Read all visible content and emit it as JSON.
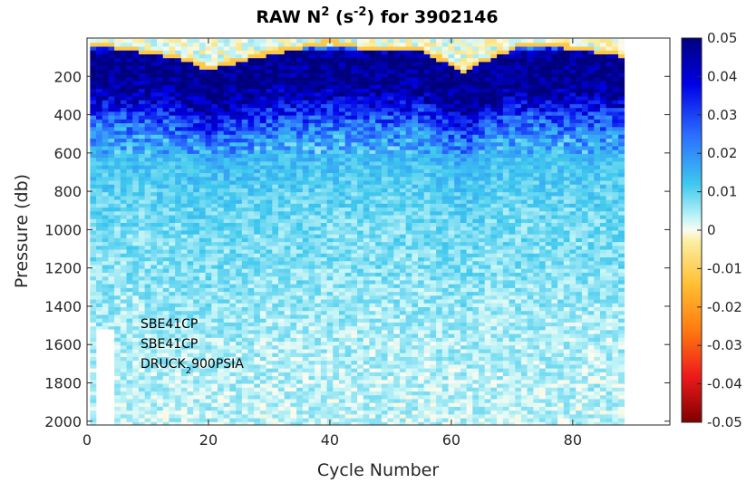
{
  "title": {
    "prefix": "RAW N",
    "sup1": "2",
    "mid": " (s",
    "sup2": "-2",
    "suffix": ") for 3902146"
  },
  "colors": {
    "background": "#ffffff",
    "axis": "#262626",
    "gap": "#ffffff"
  },
  "chart_data": {
    "type": "heatmap",
    "xlabel": "Cycle Number",
    "ylabel": "Pressure (db)",
    "xlim": [
      0,
      96
    ],
    "ylim": [
      2020,
      0
    ],
    "xticks": [
      0,
      20,
      40,
      60,
      80
    ],
    "yticks": [
      200,
      400,
      600,
      800,
      1000,
      1200,
      1400,
      1600,
      1800,
      2000
    ],
    "colorbar": {
      "label": "",
      "clim": [
        -0.05,
        0.05
      ],
      "ticks": [
        "0.05",
        "0.04",
        "0.03",
        "0.02",
        "0.01",
        "0",
        "-0.01",
        "-0.02",
        "-0.03",
        "-0.04",
        "-0.05"
      ],
      "colormap": "jet-like diverging (dark red → red → orange → yellow → white at 0 → cyan → blue → dark blue)"
    },
    "data_extent": {
      "cycles": [
        1,
        88
      ],
      "pressure_top_db": 5,
      "pressure_bottom_db": 2020,
      "early_cycles_max_depth_db": 1520
    },
    "value_profile_by_pressure": [
      {
        "pressure": 20,
        "n2": -0.004
      },
      {
        "pressure": 80,
        "n2": 0.05
      },
      {
        "pressure": 200,
        "n2": 0.05
      },
      {
        "pressure": 300,
        "n2": 0.045
      },
      {
        "pressure": 400,
        "n2": 0.03
      },
      {
        "pressure": 500,
        "n2": 0.02
      },
      {
        "pressure": 600,
        "n2": 0.014
      },
      {
        "pressure": 800,
        "n2": 0.01
      },
      {
        "pressure": 1000,
        "n2": 0.008
      },
      {
        "pressure": 1200,
        "n2": 0.007
      },
      {
        "pressure": 1400,
        "n2": 0.0055
      },
      {
        "pressure": 1600,
        "n2": 0.0045
      },
      {
        "pressure": 1800,
        "n2": 0.004
      },
      {
        "pressure": 2000,
        "n2": 0.0035
      }
    ],
    "mixed_layer_depth_db": [
      {
        "cycle": 1,
        "depth": 40
      },
      {
        "cycle": 5,
        "depth": 60
      },
      {
        "cycle": 15,
        "depth": 110
      },
      {
        "cycle": 20,
        "depth": 170
      },
      {
        "cycle": 30,
        "depth": 90
      },
      {
        "cycle": 40,
        "depth": 30
      },
      {
        "cycle": 45,
        "depth": 60
      },
      {
        "cycle": 55,
        "depth": 70
      },
      {
        "cycle": 62,
        "depth": 180
      },
      {
        "cycle": 66,
        "depth": 120
      },
      {
        "cycle": 72,
        "depth": 40
      },
      {
        "cycle": 80,
        "depth": 60
      },
      {
        "cycle": 88,
        "depth": 100
      }
    ],
    "annotations": [
      {
        "text": "SBE41CP"
      },
      {
        "text": "SBE41CP"
      },
      {
        "text": "DRUCK",
        "sub": "2",
        "rest": "900PSIA"
      }
    ]
  }
}
